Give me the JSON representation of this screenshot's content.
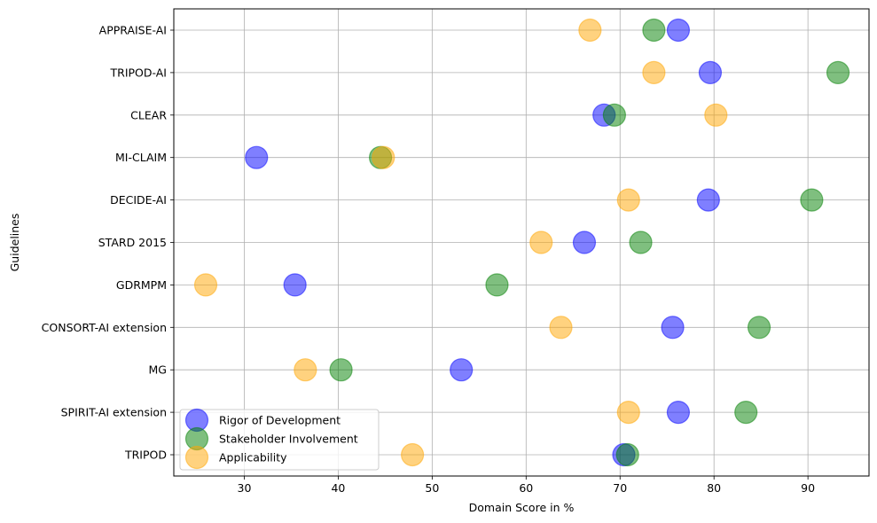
{
  "chart_data": {
    "type": "scatter",
    "xlabel": "Domain Score in %",
    "ylabel": "Guidelines",
    "xlim": [
      22.5,
      96.5
    ],
    "xticks": [
      30,
      40,
      50,
      60,
      70,
      80,
      90
    ],
    "categories": [
      "APPRAISE-AI",
      "TRIPOD-AI",
      "CLEAR",
      "MI-CLAIM",
      "DECIDE-AI",
      "STARD 2015",
      "GDRMPM",
      "CONSORT-AI extension",
      "MG",
      "SPIRIT-AI extension",
      "TRIPOD"
    ],
    "grid": true,
    "legend_position": "lower-left",
    "series": [
      {
        "name": "Rigor of Development",
        "color": "#0000ff",
        "values": [
          76.2,
          79.6,
          68.3,
          31.3,
          79.4,
          66.2,
          35.4,
          75.6,
          53.1,
          76.2,
          70.4
        ]
      },
      {
        "name": "Stakeholder Involvement",
        "color": "#008000",
        "values": [
          73.6,
          93.2,
          69.4,
          44.5,
          90.4,
          72.2,
          56.9,
          84.8,
          40.3,
          83.4,
          70.8
        ]
      },
      {
        "name": "Applicability",
        "color": "#ffa500",
        "values": [
          66.8,
          73.6,
          80.2,
          44.8,
          70.9,
          61.6,
          25.9,
          63.7,
          36.5,
          70.9,
          47.9
        ]
      }
    ]
  }
}
